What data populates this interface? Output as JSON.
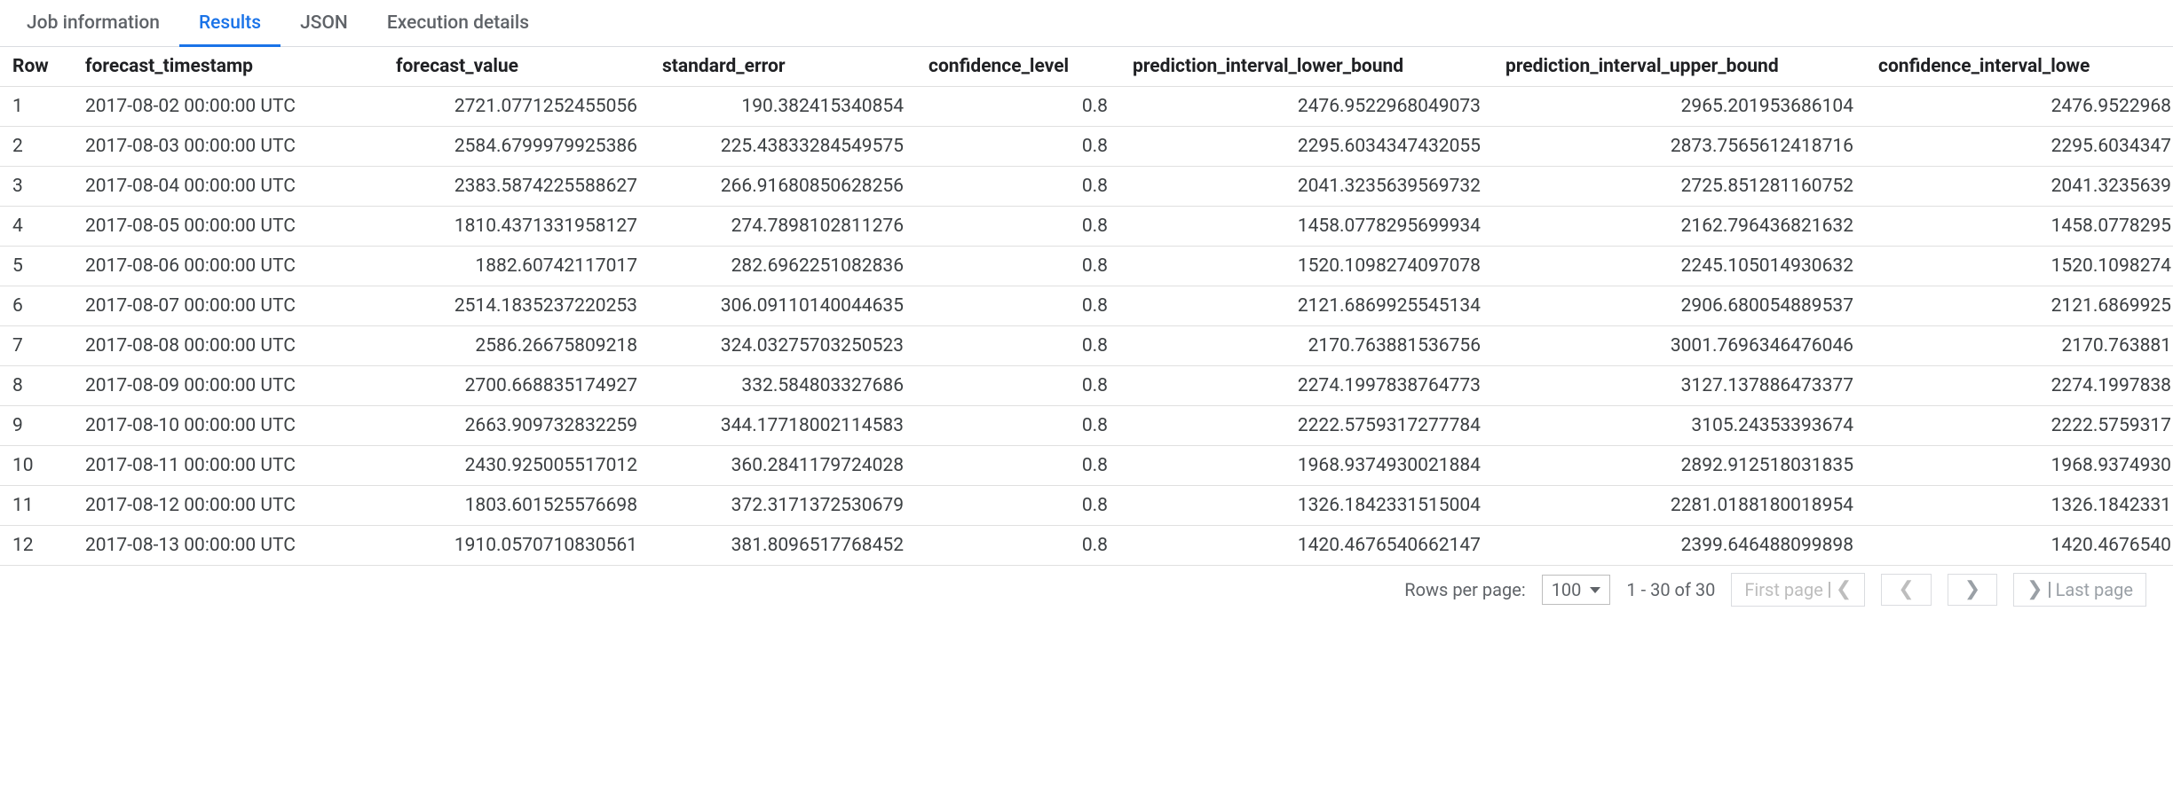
{
  "tabs": [
    {
      "label": "Job information",
      "active": false
    },
    {
      "label": "Results",
      "active": true
    },
    {
      "label": "JSON",
      "active": false
    },
    {
      "label": "Execution details",
      "active": false
    }
  ],
  "columns": [
    {
      "key": "row",
      "label": "Row",
      "cls": "col-row left"
    },
    {
      "key": "forecast_timestamp",
      "label": "forecast_timestamp",
      "cls": "col-ts left"
    },
    {
      "key": "forecast_value",
      "label": "forecast_value",
      "cls": "col-fv num",
      "header_align": "left"
    },
    {
      "key": "standard_error",
      "label": "standard_error",
      "cls": "col-se num",
      "header_align": "left"
    },
    {
      "key": "confidence_level",
      "label": "confidence_level",
      "cls": "col-cl num",
      "header_align": "left"
    },
    {
      "key": "prediction_interval_lower_bound",
      "label": "prediction_interval_lower_bound",
      "cls": "col-lo num",
      "header_align": "left"
    },
    {
      "key": "prediction_interval_upper_bound",
      "label": "prediction_interval_upper_bound",
      "cls": "col-up num",
      "header_align": "left"
    },
    {
      "key": "confidence_interval_lower",
      "label": "confidence_interval_lowe",
      "cls": "col-ci num",
      "header_align": "left"
    }
  ],
  "rows": [
    {
      "row": "1",
      "forecast_timestamp": "2017-08-02 00:00:00 UTC",
      "forecast_value": "2721.0771252455056",
      "standard_error": "190.382415340854",
      "confidence_level": "0.8",
      "prediction_interval_lower_bound": "2476.9522968049073",
      "prediction_interval_upper_bound": "2965.201953686104",
      "confidence_interval_lower": "2476.9522968"
    },
    {
      "row": "2",
      "forecast_timestamp": "2017-08-03 00:00:00 UTC",
      "forecast_value": "2584.6799979925386",
      "standard_error": "225.43833284549575",
      "confidence_level": "0.8",
      "prediction_interval_lower_bound": "2295.6034347432055",
      "prediction_interval_upper_bound": "2873.7565612418716",
      "confidence_interval_lower": "2295.6034347"
    },
    {
      "row": "3",
      "forecast_timestamp": "2017-08-04 00:00:00 UTC",
      "forecast_value": "2383.5874225588627",
      "standard_error": "266.91680850628256",
      "confidence_level": "0.8",
      "prediction_interval_lower_bound": "2041.3235639569732",
      "prediction_interval_upper_bound": "2725.851281160752",
      "confidence_interval_lower": "2041.3235639"
    },
    {
      "row": "4",
      "forecast_timestamp": "2017-08-05 00:00:00 UTC",
      "forecast_value": "1810.4371331958127",
      "standard_error": "274.7898102811276",
      "confidence_level": "0.8",
      "prediction_interval_lower_bound": "1458.0778295699934",
      "prediction_interval_upper_bound": "2162.796436821632",
      "confidence_interval_lower": "1458.0778295"
    },
    {
      "row": "5",
      "forecast_timestamp": "2017-08-06 00:00:00 UTC",
      "forecast_value": "1882.60742117017",
      "standard_error": "282.6962251082836",
      "confidence_level": "0.8",
      "prediction_interval_lower_bound": "1520.1098274097078",
      "prediction_interval_upper_bound": "2245.105014930632",
      "confidence_interval_lower": "1520.1098274"
    },
    {
      "row": "6",
      "forecast_timestamp": "2017-08-07 00:00:00 UTC",
      "forecast_value": "2514.1835237220253",
      "standard_error": "306.09110140044635",
      "confidence_level": "0.8",
      "prediction_interval_lower_bound": "2121.6869925545134",
      "prediction_interval_upper_bound": "2906.680054889537",
      "confidence_interval_lower": "2121.6869925"
    },
    {
      "row": "7",
      "forecast_timestamp": "2017-08-08 00:00:00 UTC",
      "forecast_value": "2586.26675809218",
      "standard_error": "324.03275703250523",
      "confidence_level": "0.8",
      "prediction_interval_lower_bound": "2170.763881536756",
      "prediction_interval_upper_bound": "3001.7696346476046",
      "confidence_interval_lower": "2170.763881"
    },
    {
      "row": "8",
      "forecast_timestamp": "2017-08-09 00:00:00 UTC",
      "forecast_value": "2700.668835174927",
      "standard_error": "332.584803327686",
      "confidence_level": "0.8",
      "prediction_interval_lower_bound": "2274.1997838764773",
      "prediction_interval_upper_bound": "3127.137886473377",
      "confidence_interval_lower": "2274.1997838"
    },
    {
      "row": "9",
      "forecast_timestamp": "2017-08-10 00:00:00 UTC",
      "forecast_value": "2663.909732832259",
      "standard_error": "344.17718002114583",
      "confidence_level": "0.8",
      "prediction_interval_lower_bound": "2222.5759317277784",
      "prediction_interval_upper_bound": "3105.24353393674",
      "confidence_interval_lower": "2222.5759317"
    },
    {
      "row": "10",
      "forecast_timestamp": "2017-08-11 00:00:00 UTC",
      "forecast_value": "2430.925005517012",
      "standard_error": "360.2841179724028",
      "confidence_level": "0.8",
      "prediction_interval_lower_bound": "1968.9374930021884",
      "prediction_interval_upper_bound": "2892.912518031835",
      "confidence_interval_lower": "1968.9374930"
    },
    {
      "row": "11",
      "forecast_timestamp": "2017-08-12 00:00:00 UTC",
      "forecast_value": "1803.601525576698",
      "standard_error": "372.3171372530679",
      "confidence_level": "0.8",
      "prediction_interval_lower_bound": "1326.1842331515004",
      "prediction_interval_upper_bound": "2281.0188180018954",
      "confidence_interval_lower": "1326.1842331"
    },
    {
      "row": "12",
      "forecast_timestamp": "2017-08-13 00:00:00 UTC",
      "forecast_value": "1910.0570710830561",
      "standard_error": "381.8096517768452",
      "confidence_level": "0.8",
      "prediction_interval_lower_bound": "1420.4676540662147",
      "prediction_interval_upper_bound": "2399.646488099898",
      "confidence_interval_lower": "1420.4676540"
    }
  ],
  "pager": {
    "rows_per_page_label": "Rows per page:",
    "rows_per_page_value": "100",
    "range_text": "1 - 30 of 30",
    "first_label": "First page",
    "last_label": "Last page"
  }
}
